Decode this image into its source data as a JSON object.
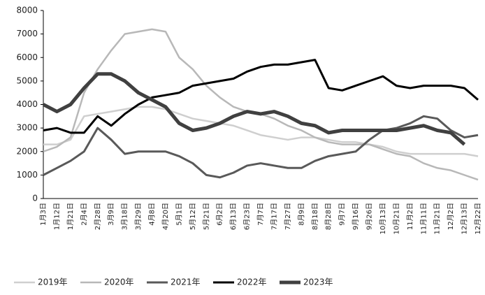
{
  "chart_data": {
    "type": "line",
    "categories": [
      "1月3日",
      "1月12日",
      "1月21日",
      "2月4日",
      "2月28日",
      "3月9日",
      "3月18日",
      "3月29日",
      "4月8日",
      "4月20日",
      "5月1日",
      "5月12日",
      "5月21日",
      "6月2日",
      "6月13日",
      "6月23日",
      "7月7日",
      "7月17日",
      "7月27日",
      "8月9日",
      "8月18日",
      "8月28日",
      "9月7日",
      "9月16日",
      "9月26日",
      "10月13日",
      "10月21日",
      "11月2日",
      "11月11日",
      "11月21日",
      "12月2日",
      "12月13日",
      "12月22日"
    ],
    "series": [
      {
        "name": "2019年",
        "color": "#cfcfcf",
        "values": [
          2300,
          2300,
          2500,
          3500,
          3600,
          3700,
          3800,
          3900,
          3900,
          3800,
          3600,
          3400,
          3300,
          3200,
          3100,
          2900,
          2700,
          2600,
          2500,
          2600,
          2600,
          2500,
          2400,
          2400,
          2300,
          2200,
          2000,
          1900,
          1900,
          1900,
          1900,
          1900,
          1800
        ]
      },
      {
        "name": "2020年",
        "color": "#b8b8b8",
        "values": [
          2000,
          2200,
          2600,
          4500,
          5500,
          6300,
          7000,
          7100,
          7200,
          7100,
          6000,
          5500,
          4800,
          4300,
          3900,
          3700,
          3600,
          3400,
          3100,
          2900,
          2600,
          2400,
          2300,
          2300,
          2300,
          2100,
          1900,
          1800,
          1500,
          1300,
          1200,
          1000,
          800
        ]
      },
      {
        "name": "2021年",
        "color": "#595959",
        "values": [
          1000,
          1300,
          1600,
          2000,
          3000,
          2500,
          1900,
          2000,
          2000,
          2000,
          1800,
          1500,
          1000,
          900,
          1100,
          1400,
          1500,
          1400,
          1300,
          1300,
          1600,
          1800,
          1900,
          2000,
          2500,
          2900,
          3000,
          3200,
          3500,
          3400,
          2900,
          2600,
          2700
        ]
      },
      {
        "name": "2022年",
        "color": "#000000",
        "values": [
          2900,
          3000,
          2800,
          2800,
          3500,
          3100,
          3600,
          4000,
          4300,
          4400,
          4500,
          4800,
          4900,
          5000,
          5100,
          5400,
          5600,
          5700,
          5700,
          5800,
          5900,
          4700,
          4600,
          4800,
          5000,
          5200,
          4800,
          4700,
          4800,
          4800,
          4800,
          4700,
          4200
        ]
      },
      {
        "name": "2023年",
        "color": "#404040",
        "values": [
          4000,
          3700,
          4000,
          4700,
          5300,
          5300,
          5000,
          4500,
          4200,
          3900,
          3200,
          2900,
          3000,
          3200,
          3500,
          3700,
          3600,
          3700,
          3500,
          3200,
          3100,
          2800,
          2900,
          2900,
          2900,
          2900,
          2900,
          3000,
          3100,
          2900,
          2800,
          2300,
          null
        ]
      }
    ],
    "ylim": [
      0,
      8000
    ],
    "yticks": [
      0,
      1000,
      2000,
      3000,
      4000,
      5000,
      6000,
      7000,
      8000
    ]
  }
}
